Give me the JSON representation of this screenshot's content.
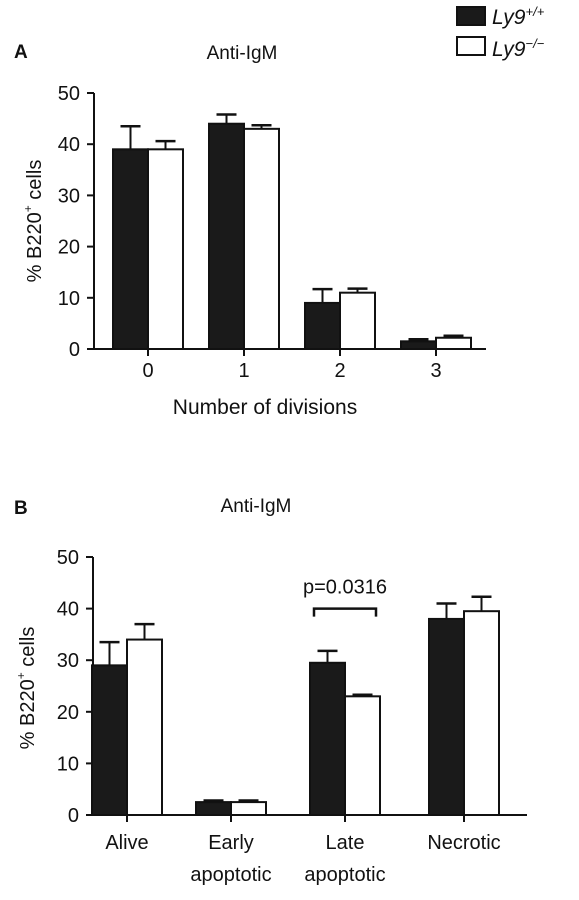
{
  "legend": {
    "entries": [
      {
        "base": "Ly9",
        "sup": "+/+",
        "fill": "#1a1a1a"
      },
      {
        "base": "Ly9",
        "sup": "−/−",
        "fill": "#ffffff"
      }
    ]
  },
  "chart_data": [
    {
      "type": "bar",
      "panel_label": "A",
      "title": "Anti-IgM",
      "ylabel_prefix": "% B220",
      "ylabel_sup": "+",
      "ylabel_suffix": " cells",
      "xlabel_lines": [
        "Number of divisions"
      ],
      "categories": [
        [
          "0"
        ],
        [
          "1"
        ],
        [
          "2"
        ],
        [
          "3"
        ]
      ],
      "ylim": [
        0,
        50
      ],
      "yticks": [
        0,
        10,
        20,
        30,
        40,
        50
      ],
      "series": [
        {
          "values": [
            39,
            44,
            9,
            1.5
          ],
          "errors": [
            4.5,
            1.8,
            2.7,
            0.4
          ],
          "fill": "#1a1a1a"
        },
        {
          "values": [
            39,
            43,
            11,
            2.2
          ],
          "errors": [
            1.6,
            0.7,
            0.8,
            0.4
          ],
          "fill": "#ffffff"
        }
      ],
      "annotations": []
    },
    {
      "type": "bar",
      "panel_label": "B",
      "title": "Anti-IgM",
      "ylabel_prefix": "% B220",
      "ylabel_sup": "+",
      "ylabel_suffix": " cells",
      "xlabel_lines": [],
      "categories": [
        [
          "Alive"
        ],
        [
          "Early",
          "apoptotic"
        ],
        [
          "Late",
          "apoptotic"
        ],
        [
          "Necrotic"
        ]
      ],
      "ylim": [
        0,
        50
      ],
      "yticks": [
        0,
        10,
        20,
        30,
        40,
        50
      ],
      "series": [
        {
          "values": [
            29,
            2.5,
            29.5,
            38
          ],
          "errors": [
            4.5,
            0.3,
            2.3,
            3.0
          ],
          "fill": "#1a1a1a"
        },
        {
          "values": [
            34,
            2.5,
            23,
            39.5
          ],
          "errors": [
            3.0,
            0.3,
            0.3,
            2.8
          ],
          "fill": "#ffffff"
        }
      ],
      "annotations": [
        {
          "text": "p=0.0316",
          "category_index": 2,
          "y": 40
        }
      ]
    }
  ]
}
